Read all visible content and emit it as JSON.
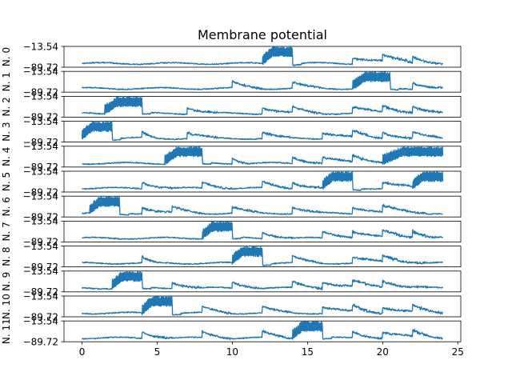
{
  "chart_data": {
    "type": "line",
    "title": "Membrane potential",
    "ylim": [
      -89.72,
      -13.54
    ],
    "yticks": [
      "−13.54",
      "−89.72"
    ],
    "xlim": [
      -1.2,
      25.2
    ],
    "xticks": [
      0,
      5,
      10,
      15,
      20,
      25
    ],
    "xticklabels": [
      "0",
      "5",
      "10",
      "15",
      "20",
      "25"
    ],
    "grid": false,
    "color": "#1f77b4",
    "series": [
      {
        "ylabel": "N. 0",
        "bursts": [
          [
            12,
            14
          ]
        ],
        "bumps": [
          [
            18,
            4
          ],
          [
            20,
            3
          ],
          [
            22,
            2
          ]
        ]
      },
      {
        "ylabel": "N. 1",
        "bursts": [
          [
            18,
            20.5
          ]
        ],
        "bumps": [
          [
            10,
            2
          ],
          [
            14,
            2
          ],
          [
            22,
            2
          ]
        ]
      },
      {
        "ylabel": "N. 2",
        "bursts": [
          [
            1.5,
            4
          ]
        ],
        "bumps": [
          [
            7,
            2
          ],
          [
            12,
            2
          ],
          [
            14,
            2
          ],
          [
            18,
            3
          ],
          [
            20,
            3
          ],
          [
            22,
            2
          ]
        ]
      },
      {
        "ylabel": "N. 3",
        "bursts": [
          [
            0,
            2
          ]
        ],
        "bumps": [
          [
            4,
            1
          ],
          [
            7,
            2
          ],
          [
            12,
            2
          ],
          [
            16,
            3
          ],
          [
            18,
            2
          ],
          [
            20,
            2
          ],
          [
            22,
            2
          ]
        ]
      },
      {
        "ylabel": "N. 4",
        "bursts": [
          [
            5.5,
            8
          ],
          [
            20,
            24
          ]
        ],
        "bumps": [
          [
            10,
            1
          ],
          [
            14,
            2
          ],
          [
            16,
            3
          ],
          [
            18,
            3
          ]
        ]
      },
      {
        "ylabel": "N. 5",
        "bursts": [
          [
            16,
            18
          ],
          [
            22,
            24
          ]
        ],
        "bumps": [
          [
            4,
            2
          ],
          [
            8,
            2
          ],
          [
            12,
            2
          ],
          [
            14,
            2
          ],
          [
            20,
            3
          ]
        ]
      },
      {
        "ylabel": "N. 6",
        "bursts": [
          [
            0.5,
            2.5
          ]
        ],
        "bumps": [
          [
            4,
            2
          ],
          [
            6,
            2
          ],
          [
            10,
            2
          ],
          [
            14,
            2
          ],
          [
            18,
            3
          ],
          [
            20,
            3
          ]
        ]
      },
      {
        "ylabel": "N. 7",
        "bursts": [
          [
            8,
            10
          ]
        ],
        "bumps": [
          [
            12,
            2
          ],
          [
            16,
            3
          ],
          [
            18,
            3
          ],
          [
            20,
            3
          ],
          [
            22,
            2
          ]
        ]
      },
      {
        "ylabel": "N. 8",
        "bursts": [
          [
            10,
            12
          ]
        ],
        "bumps": [
          [
            4,
            1
          ],
          [
            14,
            2
          ],
          [
            18,
            3
          ],
          [
            20,
            3
          ]
        ]
      },
      {
        "ylabel": "N. 9",
        "bursts": [
          [
            2,
            4
          ]
        ],
        "bumps": [
          [
            6,
            2
          ],
          [
            10,
            2
          ],
          [
            14,
            2
          ],
          [
            16,
            3
          ],
          [
            18,
            3
          ],
          [
            20,
            3
          ]
        ]
      },
      {
        "ylabel": "N. 10",
        "bursts": [
          [
            4,
            6
          ]
        ],
        "bumps": [
          [
            8,
            2
          ],
          [
            12,
            2
          ],
          [
            16,
            3
          ],
          [
            18,
            2
          ],
          [
            20,
            3
          ],
          [
            22,
            2
          ]
        ]
      },
      {
        "ylabel": "N. 11",
        "bursts": [
          [
            14,
            16
          ]
        ],
        "bumps": [
          [
            4,
            2
          ],
          [
            8,
            2
          ],
          [
            12,
            2
          ],
          [
            18,
            2
          ],
          [
            20,
            3
          ],
          [
            22,
            2
          ]
        ]
      }
    ]
  }
}
